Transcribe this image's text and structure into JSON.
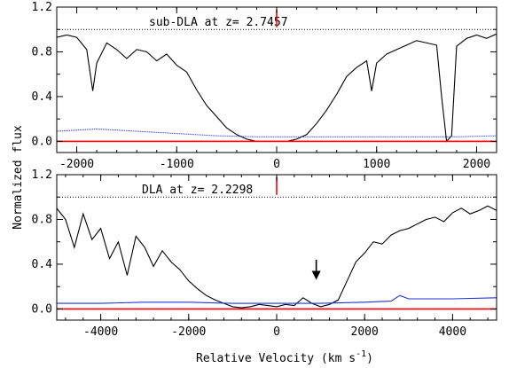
{
  "chart_data": [
    {
      "type": "line",
      "panel": "top",
      "annotation": "sub-DLA at z= 2.7457",
      "ylabel": "Normalized flux",
      "xlabel": "",
      "xlim": [
        -2200,
        2200
      ],
      "ylim": [
        -0.1,
        1.2
      ],
      "x_ticks": [
        -2000,
        -1000,
        0,
        1000,
        2000
      ],
      "x_tick_labels": [
        "-2000",
        "-1000",
        "0",
        "1000",
        "2000"
      ],
      "y_ticks": [
        0.0,
        0.4,
        0.8,
        1.2
      ],
      "y_tick_labels": [
        "0.0",
        "0.4",
        "0.8",
        "1.2"
      ],
      "minor_y_ticks": [
        0.2,
        0.6,
        1.0
      ],
      "reference_lines": [
        1.0,
        0.0
      ],
      "redshift_marker_x": 0,
      "series": [
        {
          "role": "flux",
          "color": "#000000",
          "x": [
            -2200,
            -2100,
            -2000,
            -1900,
            -1840,
            -1800,
            -1700,
            -1600,
            -1500,
            -1400,
            -1300,
            -1200,
            -1100,
            -1000,
            -900,
            -800,
            -700,
            -600,
            -500,
            -400,
            -300,
            -200,
            -100,
            0,
            100,
            200,
            300,
            400,
            500,
            600,
            650,
            700,
            800,
            900,
            950,
            1000,
            1100,
            1200,
            1300,
            1400,
            1500,
            1600,
            1650,
            1700,
            1750,
            1800,
            1900,
            2000,
            2100,
            2200
          ],
          "y": [
            0.93,
            0.95,
            0.93,
            0.82,
            0.45,
            0.7,
            0.88,
            0.82,
            0.74,
            0.82,
            0.8,
            0.72,
            0.78,
            0.68,
            0.62,
            0.46,
            0.32,
            0.22,
            0.12,
            0.06,
            0.02,
            0.0,
            0.0,
            0.0,
            0.0,
            0.02,
            0.06,
            0.16,
            0.28,
            0.42,
            0.5,
            0.58,
            0.66,
            0.72,
            0.45,
            0.7,
            0.78,
            0.82,
            0.86,
            0.9,
            0.88,
            0.86,
            0.4,
            0.0,
            0.05,
            0.85,
            0.92,
            0.95,
            0.92,
            0.96
          ]
        },
        {
          "role": "error",
          "color": "#2233dd",
          "x": [
            -2200,
            -1800,
            -1400,
            -1000,
            -600,
            -200,
            200,
            600,
            1000,
            1400,
            1800,
            2200
          ],
          "y": [
            0.09,
            0.11,
            0.09,
            0.07,
            0.05,
            0.04,
            0.04,
            0.04,
            0.04,
            0.04,
            0.04,
            0.05
          ]
        },
        {
          "role": "fit",
          "color": "#ff0000",
          "center": 0,
          "tau0": 120,
          "b": 0.0016
        },
        {
          "role": "fit-upper",
          "color": "#ff0000",
          "center": 0,
          "tau0": 100,
          "b": 0.0016
        },
        {
          "role": "fit-lower",
          "color": "#ff0000",
          "center": 0,
          "tau0": 145,
          "b": 0.0016
        }
      ]
    },
    {
      "type": "line",
      "panel": "bottom",
      "annotation": "DLA at z= 2.2298",
      "ylabel": "Normalized flux",
      "xlabel": "Relative Velocity (km s",
      "xlabel_exponent": "-1",
      "xlabel_close": ")",
      "xlim": [
        -5000,
        5000
      ],
      "ylim": [
        -0.1,
        1.2
      ],
      "x_ticks": [
        -4000,
        -2000,
        0,
        2000,
        4000
      ],
      "x_tick_labels": [
        "-4000",
        "-2000",
        "0",
        "2000",
        "4000"
      ],
      "y_ticks": [
        0.0,
        0.4,
        0.8,
        1.2
      ],
      "y_tick_labels": [
        "0.0",
        "0.4",
        "0.8",
        "1.2"
      ],
      "minor_y_ticks": [
        0.2,
        0.6,
        1.0
      ],
      "reference_lines": [
        1.0,
        0.0
      ],
      "redshift_marker_x": 0,
      "arrow_x": 900,
      "series": [
        {
          "role": "flux",
          "color": "#000000",
          "x": [
            -5000,
            -4800,
            -4600,
            -4400,
            -4200,
            -4000,
            -3800,
            -3600,
            -3400,
            -3200,
            -3000,
            -2800,
            -2600,
            -2400,
            -2200,
            -2000,
            -1800,
            -1600,
            -1400,
            -1200,
            -1000,
            -800,
            -600,
            -400,
            -200,
            0,
            200,
            400,
            600,
            800,
            1000,
            1200,
            1400,
            1600,
            1800,
            2000,
            2200,
            2400,
            2600,
            2800,
            3000,
            3200,
            3400,
            3600,
            3800,
            4000,
            4200,
            4400,
            4600,
            4800,
            5000
          ],
          "y": [
            0.9,
            0.8,
            0.55,
            0.85,
            0.62,
            0.72,
            0.45,
            0.6,
            0.3,
            0.65,
            0.55,
            0.38,
            0.52,
            0.42,
            0.35,
            0.25,
            0.18,
            0.12,
            0.08,
            0.05,
            0.02,
            0.01,
            0.02,
            0.04,
            0.03,
            0.02,
            0.04,
            0.03,
            0.1,
            0.05,
            0.02,
            0.04,
            0.08,
            0.25,
            0.42,
            0.5,
            0.6,
            0.58,
            0.66,
            0.7,
            0.72,
            0.76,
            0.8,
            0.82,
            0.78,
            0.86,
            0.9,
            0.85,
            0.88,
            0.92,
            0.88
          ]
        },
        {
          "role": "error",
          "color": "#2233dd",
          "x": [
            -5000,
            -4000,
            -3000,
            -2000,
            -1000,
            0,
            1000,
            2000,
            2600,
            2800,
            3000,
            4000,
            5000
          ],
          "y": [
            0.05,
            0.05,
            0.06,
            0.06,
            0.05,
            0.05,
            0.05,
            0.06,
            0.07,
            0.12,
            0.09,
            0.09,
            0.1
          ]
        },
        {
          "role": "fit",
          "color": "#ff0000",
          "center": 0,
          "tau0": 220,
          "b": 0.00028
        },
        {
          "role": "fit-upper",
          "color": "#ff0000",
          "center": 0,
          "tau0": 185,
          "b": 0.00028
        },
        {
          "role": "fit-lower",
          "color": "#ff0000",
          "center": 0,
          "tau0": 260,
          "b": 0.00028
        }
      ]
    }
  ]
}
